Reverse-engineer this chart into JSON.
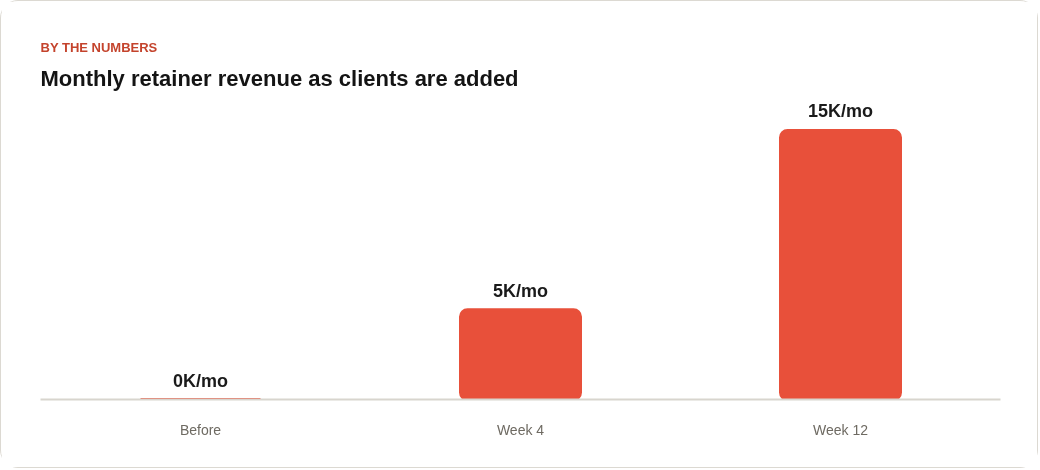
{
  "chart_data": {
    "type": "bar",
    "subtitle": "BY THE NUMBERS",
    "title": "Monthly retainer revenue as clients are added",
    "categories": [
      "Before",
      "Week 4",
      "Week 12"
    ],
    "values": [
      0,
      5,
      15
    ],
    "value_labels": [
      "0K/mo",
      "5K/mo",
      "15K/mo"
    ],
    "color": "#e8503a"
  }
}
